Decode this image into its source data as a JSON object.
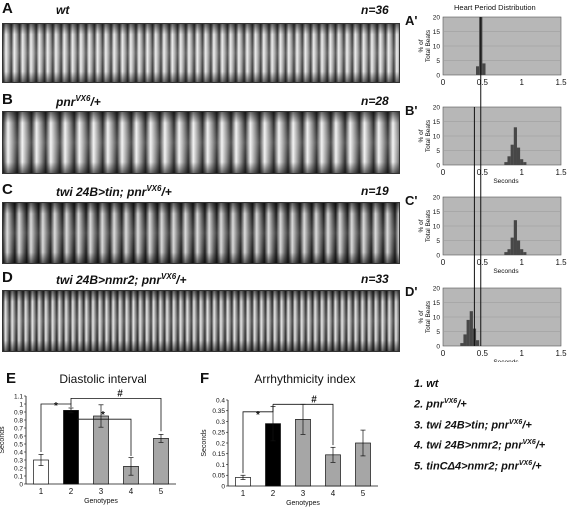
{
  "panels": {
    "A": {
      "label": "A",
      "genotype": "wt",
      "n": "n=36"
    },
    "B": {
      "label": "B",
      "genotype_base": "pnr",
      "genotype_sup": "VX6",
      "genotype_tail": "/+",
      "n": "n=28"
    },
    "C": {
      "label": "C",
      "genotype_base": "twi 24B>tin; pnr",
      "genotype_sup": "VX6",
      "genotype_tail": "/+",
      "n": "n=19"
    },
    "D": {
      "label": "D",
      "genotype_base": "twi 24B>nmr2; pnr",
      "genotype_sup": "VX6",
      "genotype_tail": "/+",
      "n": "n=33"
    }
  },
  "histogram_header": "Heart Period Distribution",
  "histograms": {
    "labels": [
      "A'",
      "B'",
      "C'",
      "D'"
    ],
    "ylabel_line1": "% of",
    "ylabel_line2": "Total Beats",
    "xlabel": "Seconds",
    "yticks": [
      "0",
      "5",
      "10",
      "15",
      "20"
    ],
    "xticks": [
      "0",
      "0.5",
      "1",
      "1.5"
    ]
  },
  "legend": {
    "items": [
      {
        "num": "1.",
        "base": "wt",
        "sup": "",
        "tail": ""
      },
      {
        "num": "2.",
        "base": "pnr",
        "sup": "VX6",
        "tail": "/+"
      },
      {
        "num": "3.",
        "base": "twi 24B>tin; pnr",
        "sup": "VX6",
        "tail": "/+"
      },
      {
        "num": "4.",
        "base": "twi 24B>nmr2; pnr",
        "sup": "VX6",
        "tail": "/+"
      },
      {
        "num": "5.",
        "base": "tinCΔ4>nmr2; pnr",
        "sup": "VX6",
        "tail": "/+"
      }
    ]
  },
  "chart_data": [
    {
      "type": "bar",
      "panel": "E",
      "title": "Diastolic interval",
      "xlabel": "Genotypes",
      "ylabel": "Seconds",
      "categories": [
        "1",
        "2",
        "3",
        "4",
        "5"
      ],
      "values": [
        0.3,
        0.92,
        0.85,
        0.22,
        0.57
      ],
      "errors": [
        0.07,
        0.03,
        0.14,
        0.11,
        0.05
      ],
      "colors": [
        "#ffffff",
        "#000000",
        "#a6a6a6",
        "#a6a6a6",
        "#a6a6a6"
      ],
      "ylim": [
        0,
        1.1
      ],
      "yticks": [
        "0",
        "0.1",
        "0.2",
        "0.3",
        "0.4",
        "0.5",
        "0.6",
        "0.7",
        "0.8",
        "0.9",
        "1",
        "1.1"
      ],
      "annotations": [
        "*",
        "*",
        "#"
      ]
    },
    {
      "type": "bar",
      "panel": "F",
      "title": "Arrhythmicity index",
      "xlabel": "Genotypes",
      "ylabel": "Seconds",
      "categories": [
        "1",
        "2",
        "3",
        "4",
        "5"
      ],
      "values": [
        0.04,
        0.29,
        0.31,
        0.145,
        0.2
      ],
      "errors": [
        0.01,
        0.08,
        0.07,
        0.035,
        0.06
      ],
      "colors": [
        "#ffffff",
        "#000000",
        "#a6a6a6",
        "#a6a6a6",
        "#a6a6a6"
      ],
      "ylim": [
        0,
        0.4
      ],
      "yticks": [
        "0",
        "0.05",
        "0.1",
        "0.15",
        "0.2",
        "0.25",
        "0.3",
        "0.35",
        "0.4"
      ],
      "annotations": [
        "*",
        "#"
      ]
    },
    {
      "type": "bar",
      "panel": "A'",
      "ylabel": "% of Total Beats",
      "xlabel": "",
      "x": [
        0.44,
        0.48,
        0.52
      ],
      "values": [
        3,
        20,
        4
      ],
      "ylim": [
        0,
        20
      ],
      "xlim": [
        0,
        1.5
      ]
    },
    {
      "type": "bar",
      "panel": "B'",
      "ylabel": "% of Total Beats",
      "xlabel": "Seconds",
      "x": [
        0.8,
        0.84,
        0.88,
        0.92,
        0.96,
        1.0,
        1.04
      ],
      "values": [
        1,
        3,
        7,
        13,
        6,
        2,
        1
      ],
      "ylim": [
        0,
        20
      ],
      "xlim": [
        0,
        1.5
      ]
    },
    {
      "type": "bar",
      "panel": "C'",
      "ylabel": "% of Total Beats",
      "xlabel": "Seconds",
      "x": [
        0.8,
        0.84,
        0.88,
        0.92,
        0.96,
        1.0,
        1.04
      ],
      "values": [
        1,
        2,
        6,
        12,
        5,
        2,
        1
      ],
      "ylim": [
        0,
        20
      ],
      "xlim": [
        0,
        1.5
      ]
    },
    {
      "type": "bar",
      "panel": "D'",
      "ylabel": "% of Total Beats",
      "xlabel": "Seconds",
      "x": [
        0.24,
        0.28,
        0.32,
        0.36,
        0.4,
        0.44
      ],
      "values": [
        1,
        4,
        9,
        12,
        6,
        2
      ],
      "ylim": [
        0,
        20
      ],
      "xlim": [
        0,
        1.5
      ]
    }
  ]
}
